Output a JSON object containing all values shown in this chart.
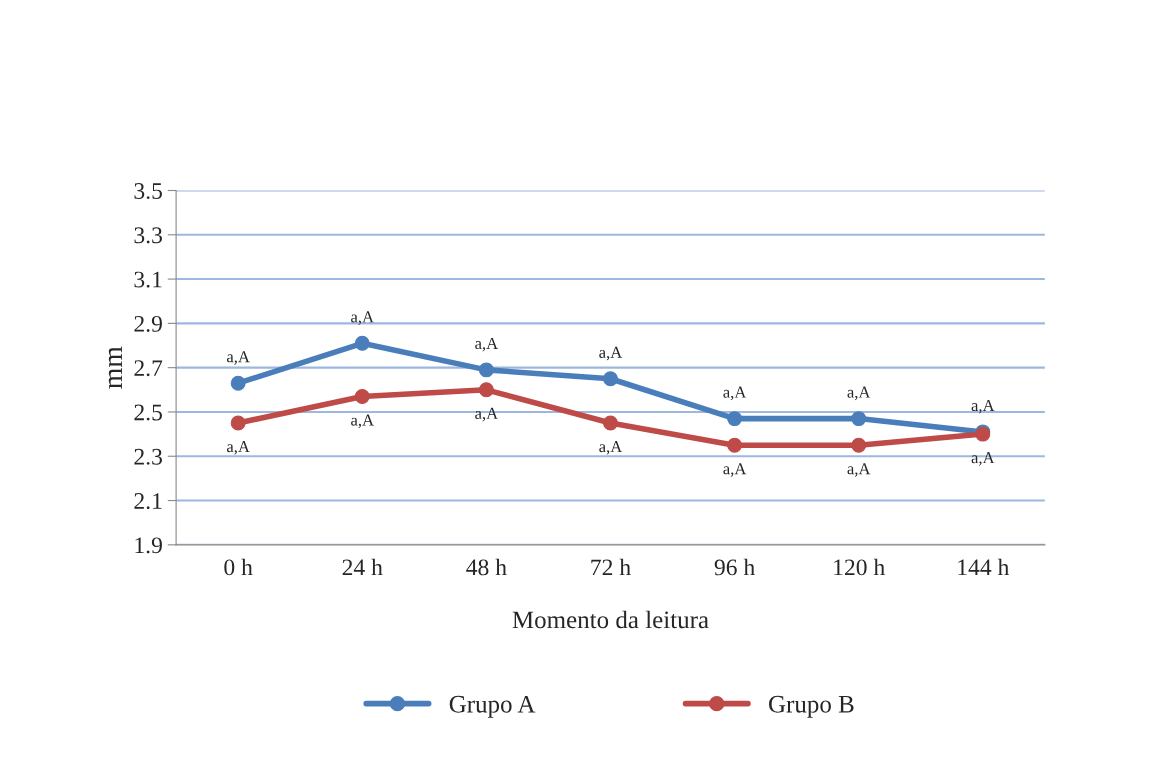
{
  "chart_data": {
    "type": "line",
    "xlabel": "Momento da leitura",
    "ylabel": "mm",
    "categories": [
      "0 h",
      "24 h",
      "48 h",
      "72 h",
      "96 h",
      "120 h",
      "144 h"
    ],
    "series": [
      {
        "name": "Grupo A",
        "color": "#4a7ebb",
        "values": [
          2.63,
          2.81,
          2.69,
          2.65,
          2.47,
          2.47,
          2.41
        ],
        "value_labels": [
          "a,A",
          "a,A",
          "a,A",
          "a,A",
          "a,A",
          "a,A",
          "a,A"
        ]
      },
      {
        "name": "Grupo B",
        "color": "#be4b48",
        "values": [
          2.45,
          2.57,
          2.6,
          2.45,
          2.35,
          2.35,
          2.4
        ],
        "value_labels": [
          "a,A",
          "a,A",
          "a,A",
          "a,A",
          "a,A",
          "a,A",
          "a,A"
        ]
      }
    ],
    "ylim": [
      1.9,
      3.5
    ],
    "yticks": [
      1.9,
      2.1,
      2.3,
      2.5,
      2.7,
      2.9,
      3.1,
      3.3,
      3.5
    ],
    "grid": "y",
    "legend": "bottom",
    "marker": "circle",
    "line_style": "solid"
  }
}
